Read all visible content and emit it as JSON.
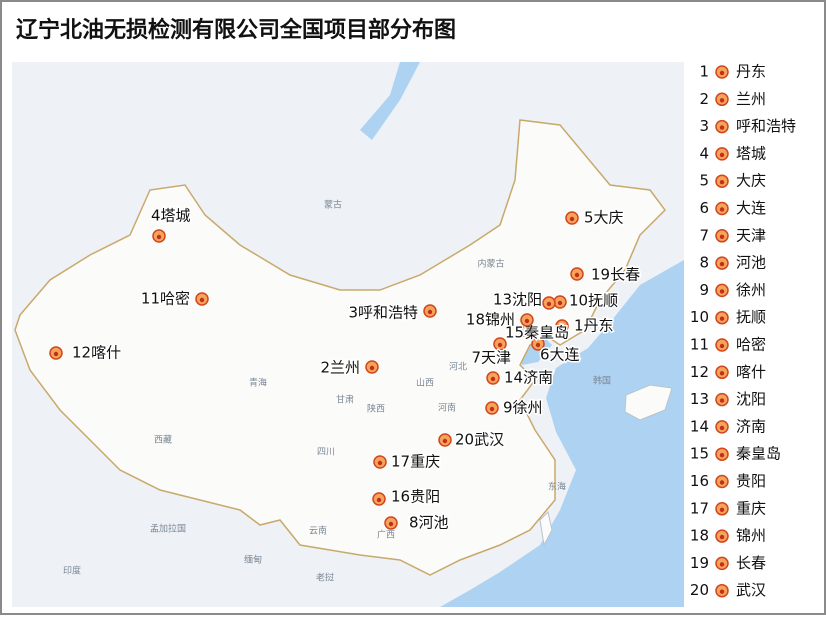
{
  "title": "辽宁北油无损检测有限公司全国项目部分布图",
  "projects": [
    {
      "number": 1,
      "name": "丹东",
      "map_label": "1丹东"
    },
    {
      "number": 2,
      "name": "兰州",
      "map_label": "2兰州"
    },
    {
      "number": 3,
      "name": "呼和浩特",
      "map_label": "3呼和浩特"
    },
    {
      "number": 4,
      "name": "塔城",
      "map_label": "4塔城"
    },
    {
      "number": 5,
      "name": "大庆",
      "map_label": "5大庆"
    },
    {
      "number": 6,
      "name": "大连",
      "map_label": "6大连"
    },
    {
      "number": 7,
      "name": "天津",
      "map_label": "7天津"
    },
    {
      "number": 8,
      "name": "河池",
      "map_label": "8河池"
    },
    {
      "number": 9,
      "name": "徐州",
      "map_label": "9徐州"
    },
    {
      "number": 10,
      "name": "抚顺",
      "map_label": "10抚顺"
    },
    {
      "number": 11,
      "name": "哈密",
      "map_label": "11哈密"
    },
    {
      "number": 12,
      "name": "喀什",
      "map_label": "12喀什"
    },
    {
      "number": 13,
      "name": "沈阳",
      "map_label": "13沈阳"
    },
    {
      "number": 14,
      "name": "济南",
      "map_label": "14济南"
    },
    {
      "number": 15,
      "name": "秦皇岛",
      "map_label": "15秦皇岛"
    },
    {
      "number": 16,
      "name": "贵阳",
      "map_label": "16贵阳"
    },
    {
      "number": 17,
      "name": "重庆",
      "map_label": "17重庆"
    },
    {
      "number": 18,
      "name": "锦州",
      "map_label": "18锦州"
    },
    {
      "number": 19,
      "name": "长春",
      "map_label": "19长春"
    },
    {
      "number": 20,
      "name": "武汉",
      "map_label": "20武汉"
    }
  ],
  "base_map_labels": [
    "蒙古",
    "内蒙古",
    "韩国",
    "印度",
    "缅甸",
    "老挝",
    "孟加拉国",
    "东海",
    "青海",
    "甘肃",
    "陕西",
    "山西",
    "河北",
    "河南",
    "四川",
    "云南",
    "广西",
    "西藏"
  ]
}
